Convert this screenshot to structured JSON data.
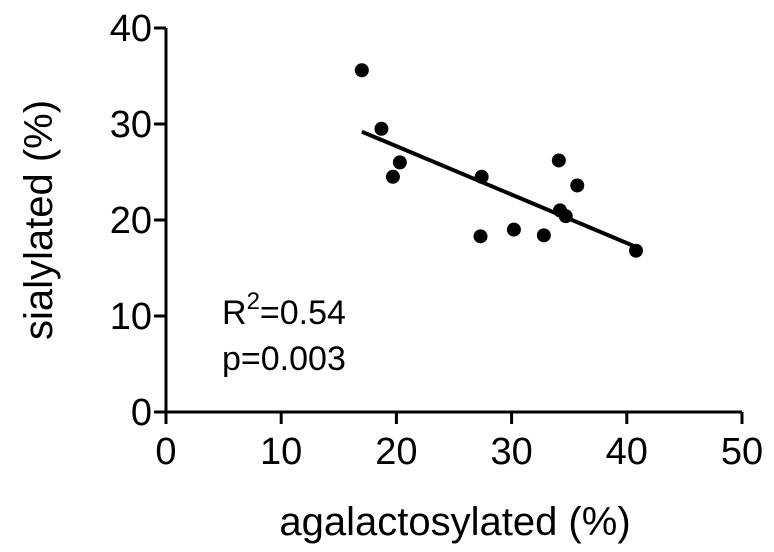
{
  "chart_data": {
    "type": "scatter",
    "xlabel": "agalactosylated (%)",
    "ylabel": "sialylated (%)",
    "xlim": [
      0,
      50
    ],
    "ylim": [
      0,
      40
    ],
    "xticks": [
      0,
      10,
      20,
      30,
      40,
      50
    ],
    "yticks": [
      0,
      10,
      20,
      30,
      40
    ],
    "grid": false,
    "legend": "none",
    "point_color": "#000000",
    "series": [
      {
        "x": [
          17.0,
          18.7,
          19.7,
          20.3,
          27.4,
          27.3,
          30.2,
          32.8,
          34.1,
          34.2,
          34.7,
          35.7,
          40.8
        ],
        "y": [
          35.6,
          29.5,
          24.5,
          26.0,
          24.5,
          18.3,
          19.0,
          18.4,
          26.2,
          21.0,
          20.4,
          23.6,
          16.8
        ]
      }
    ],
    "fit_line": {
      "x": [
        17.0,
        40.8
      ],
      "y": [
        29.2,
        17.2
      ]
    },
    "annotations": {
      "r2_prefix": "R",
      "r2_sup": "2",
      "r2_value": "=0.54",
      "p_value": "p=0.003"
    }
  }
}
